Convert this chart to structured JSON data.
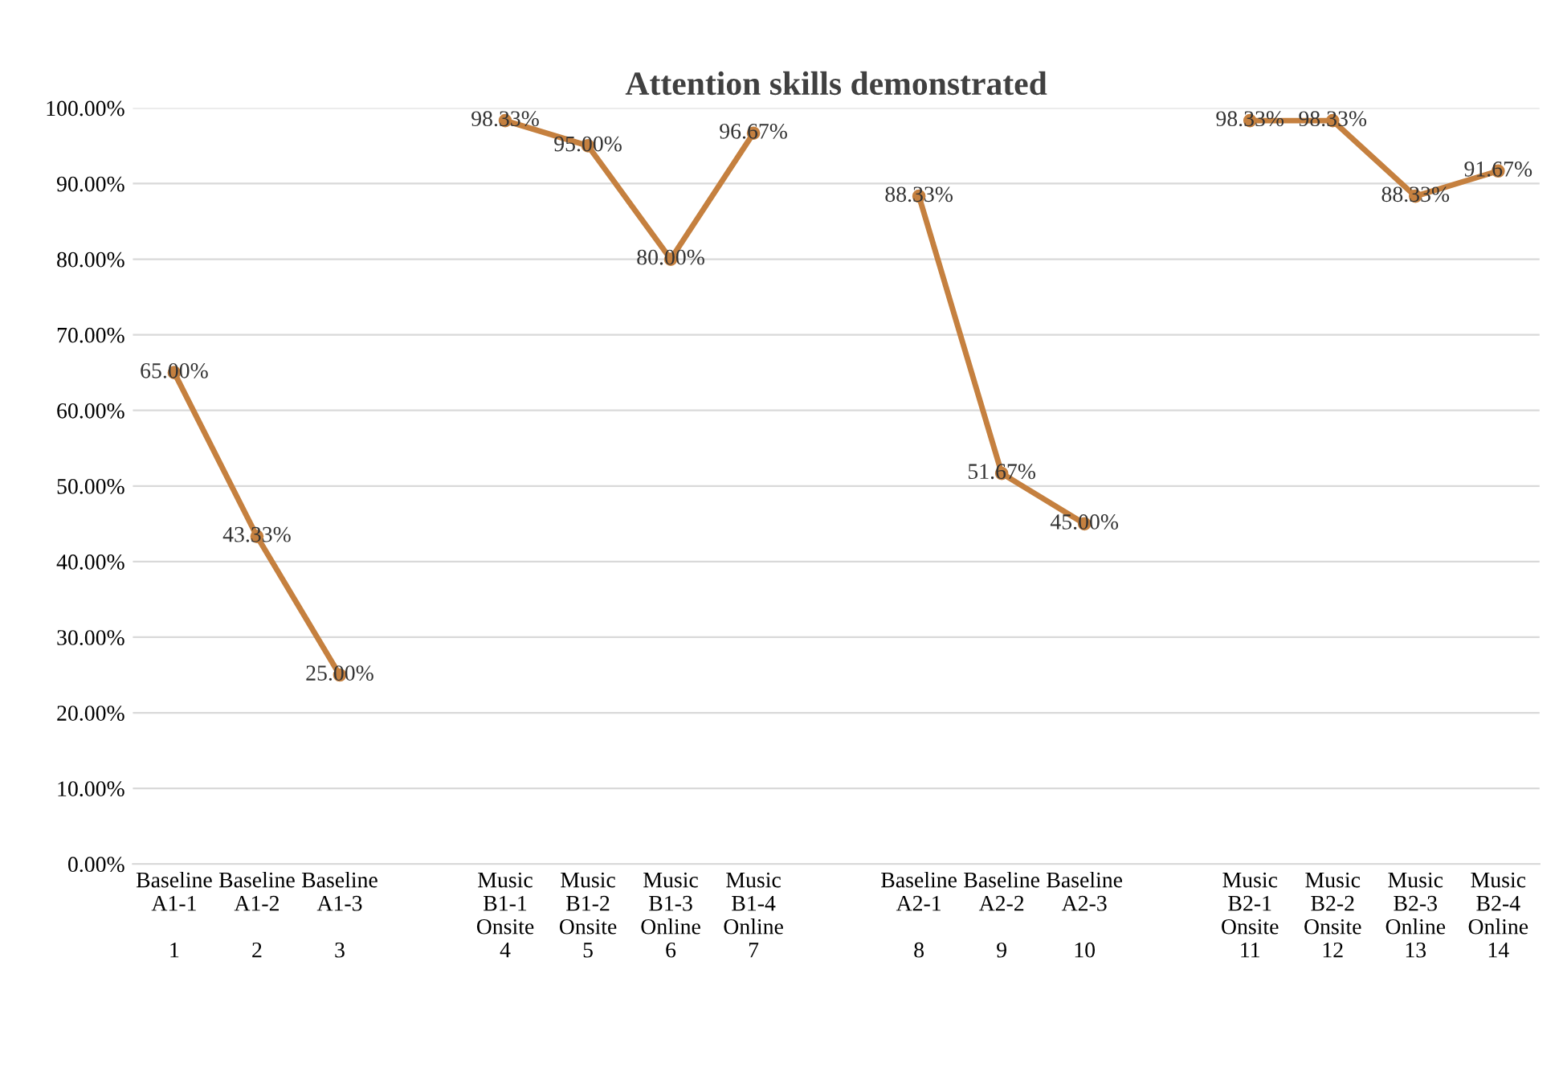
{
  "chart_data": {
    "type": "line",
    "title": "Attention skills demonstrated",
    "categories": [
      "Baseline\nA1-1\n\n1",
      "Baseline\nA1-2\n\n2",
      "Baseline\nA1-3\n\n3",
      null,
      "Music\nB1-1\nOnsite\n4",
      "Music\nB1-2\nOnsite\n5",
      "Music\nB1-3\nOnline\n6",
      "Music\nB1-4\nOnline\n7",
      null,
      "Baseline\nA2-1\n\n8",
      "Baseline\nA2-2\n\n9",
      "Baseline\nA2-3\n\n10",
      null,
      "Music\nB2-1\nOnsite\n11",
      "Music\nB2-2\nOnsite\n12",
      "Music\nB2-3\nOnline\n13",
      "Music\nB2-4\nOnline\n14"
    ],
    "series": [
      {
        "color": "#c5803f",
        "values": [
          65.0,
          43.33,
          25.0,
          null,
          98.33,
          95.0,
          80.0,
          96.67,
          null,
          88.33,
          51.67,
          45.0,
          null,
          98.33,
          98.33,
          88.33,
          91.67
        ],
        "value_labels": [
          "65.00%",
          "43.33%",
          "25.00%",
          null,
          "98.33%",
          "95.00%",
          "80.00%",
          "96.67%",
          null,
          "88.33%",
          "51.67%",
          "45.00%",
          null,
          "98.33%",
          "98.33%",
          "88.33%",
          "91.67%"
        ]
      }
    ],
    "ylim": [
      0,
      100
    ],
    "yticks": [
      {
        "value": 0,
        "label": "0.00%"
      },
      {
        "value": 10,
        "label": "10.00%"
      },
      {
        "value": 20,
        "label": "20.00%"
      },
      {
        "value": 30,
        "label": "30.00%"
      },
      {
        "value": 40,
        "label": "40.00%"
      },
      {
        "value": 50,
        "label": "50.00%"
      },
      {
        "value": 60,
        "label": "60.00%"
      },
      {
        "value": 70,
        "label": "70.00%"
      },
      {
        "value": 80,
        "label": "80.00%"
      },
      {
        "value": 90,
        "label": "90.00%"
      },
      {
        "value": 100,
        "label": "100.00%"
      }
    ],
    "grid": "y",
    "marker": "circle",
    "line_style": "solid"
  }
}
